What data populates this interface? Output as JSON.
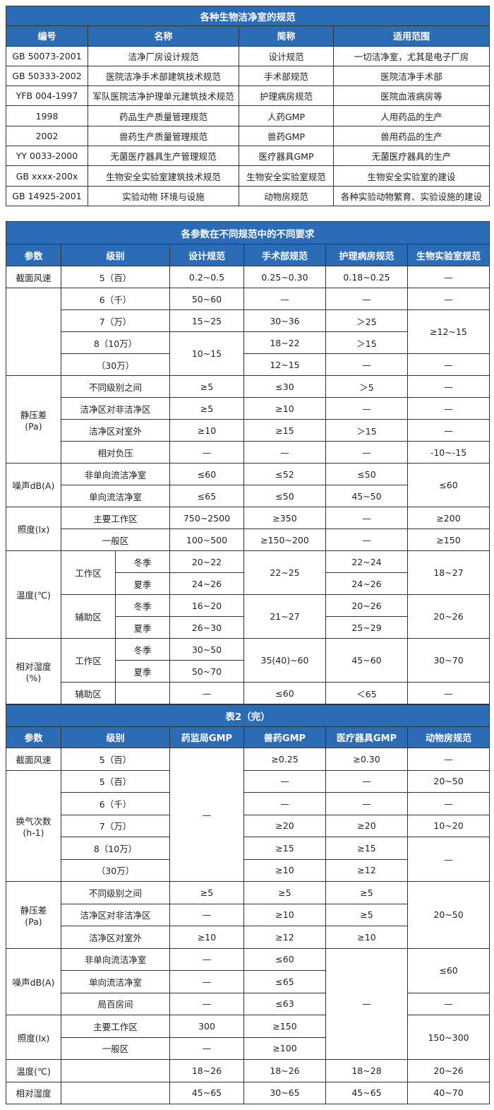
{
  "colors": {
    "header_bg": "#2c6bb5",
    "header_text": "#ffffff",
    "border": "#333333"
  },
  "tables": [
    {
      "title": "各种生物洁净室的规范",
      "headers": [
        {
          "t": "编号"
        },
        {
          "t": "名称"
        },
        {
          "t": "简称"
        },
        {
          "t": "适用范围"
        }
      ],
      "rows": [
        [
          {
            "t": "GB 50073-2001"
          },
          {
            "t": "洁净厂房设计规范"
          },
          {
            "t": "设计规范"
          },
          {
            "t": "一切洁净室，尤其是电子厂房"
          }
        ],
        [
          {
            "t": "GB 50333-2002"
          },
          {
            "t": "医院洁净手术部建筑技术规范"
          },
          {
            "t": "手术部规范"
          },
          {
            "t": "医院洁净手术部"
          }
        ],
        [
          {
            "t": "YFB 004-1997"
          },
          {
            "t": "军队医院洁净护理单元建筑技术规范"
          },
          {
            "t": "护理病房规范"
          },
          {
            "t": "医院血液病房等"
          }
        ],
        [
          {
            "t": "1998"
          },
          {
            "t": "药品生产质量管理规范"
          },
          {
            "t": "人药GMP"
          },
          {
            "t": "人用药品的生产"
          }
        ],
        [
          {
            "t": "2002"
          },
          {
            "t": "兽药生产质量管理规范"
          },
          {
            "t": "兽药GMP"
          },
          {
            "t": "兽用药品的生产"
          }
        ],
        [
          {
            "t": "YY 0033-2000"
          },
          {
            "t": "无菌医疗器具生产管理规范"
          },
          {
            "t": "医疗器具GMP"
          },
          {
            "t": "无菌医疗器具的生产"
          }
        ],
        [
          {
            "t": "GB xxxx-200x"
          },
          {
            "t": "生物安全实验室建筑技术规范"
          },
          {
            "t": "生物安全实验室规范"
          },
          {
            "t": "生物安全实验室的建设"
          }
        ],
        [
          {
            "t": "GB 14925-2001"
          },
          {
            "t": "实验动物 环境与设施"
          },
          {
            "t": "动物房规范"
          },
          {
            "t": "各种实验动物繁育、实验设施的建设"
          }
        ]
      ]
    },
    {
      "title": "各参数在不同规范中的不同要求",
      "headers": [
        {
          "t": "参数"
        },
        {
          "t": "级别",
          "cs": 2
        },
        {
          "t": "设计规范"
        },
        {
          "t": "手术部规范"
        },
        {
          "t": "护理病房规范"
        },
        {
          "t": "生物实验室规范"
        }
      ],
      "rows": [
        [
          {
            "t": "截面风速"
          },
          {
            "t": "5（百）",
            "cs": 2
          },
          {
            "t": "0.2~0.5"
          },
          {
            "t": "0.25~0.30"
          },
          {
            "t": "0.18~0.25"
          },
          {
            "t": "—"
          }
        ],
        [
          {
            "t": "",
            "rs": 4
          },
          {
            "t": "6（千）",
            "cs": 2
          },
          {
            "t": "50~60"
          },
          {
            "t": "—"
          },
          {
            "t": "—"
          },
          {
            "t": "—"
          }
        ],
        [
          {
            "t": "7（万）",
            "cs": 2
          },
          {
            "t": "15~25"
          },
          {
            "t": "30~36"
          },
          {
            "t": "＞25"
          },
          {
            "t": "≥12~15",
            "rs": 2
          }
        ],
        [
          {
            "t": "8（10万）",
            "cs": 2
          },
          {
            "t": "10~15",
            "rs": 2
          },
          {
            "t": "18~22"
          },
          {
            "t": "＞15"
          }
        ],
        [
          {
            "t": "（30万）",
            "cs": 2
          },
          {
            "t": "12~15"
          },
          {
            "t": "—"
          },
          {
            "t": "—"
          }
        ],
        [
          {
            "t": "静压差\n(Pa)",
            "rs": 4
          },
          {
            "t": "不同级别之间",
            "cs": 2
          },
          {
            "t": "≥5"
          },
          {
            "t": "≤30"
          },
          {
            "t": "＞5"
          },
          {
            "t": "—"
          }
        ],
        [
          {
            "t": "洁净区对非洁净区",
            "cs": 2
          },
          {
            "t": "≥5"
          },
          {
            "t": "≥10"
          },
          {
            "t": "—"
          },
          {
            "t": "—"
          }
        ],
        [
          {
            "t": "洁净区对室外",
            "cs": 2
          },
          {
            "t": "≥10"
          },
          {
            "t": "≥15"
          },
          {
            "t": "＞15"
          },
          {
            "t": "—"
          }
        ],
        [
          {
            "t": "相对负压",
            "cs": 2
          },
          {
            "t": "—"
          },
          {
            "t": "—"
          },
          {
            "t": "—"
          },
          {
            "t": "-10~-15"
          }
        ],
        [
          {
            "t": "噪声dB(A)",
            "rs": 2
          },
          {
            "t": "非单向流洁净室",
            "cs": 2
          },
          {
            "t": "≤60"
          },
          {
            "t": "≤52"
          },
          {
            "t": "≤50"
          },
          {
            "t": "≤60",
            "rs": 2
          }
        ],
        [
          {
            "t": "单向流洁净室",
            "cs": 2
          },
          {
            "t": "≤65"
          },
          {
            "t": "≤50"
          },
          {
            "t": "45~50"
          }
        ],
        [
          {
            "t": "照度(lx)",
            "rs": 2
          },
          {
            "t": "主要工作区",
            "cs": 2
          },
          {
            "t": "750~2500"
          },
          {
            "t": "≥350"
          },
          {
            "t": "—"
          },
          {
            "t": "≥200"
          }
        ],
        [
          {
            "t": "一般区",
            "cs": 2
          },
          {
            "t": "100~500"
          },
          {
            "t": "≥150~200"
          },
          {
            "t": "—"
          },
          {
            "t": "≥150"
          }
        ],
        [
          {
            "t": "温度(℃)",
            "rs": 4
          },
          {
            "t": "工作区",
            "rs": 2
          },
          {
            "t": "冬季"
          },
          {
            "t": "20~22"
          },
          {
            "t": "22~25",
            "rs": 2
          },
          {
            "t": "22~24"
          },
          {
            "t": "18~27",
            "rs": 2
          }
        ],
        [
          {
            "t": "夏季"
          },
          {
            "t": "24~26"
          },
          {
            "t": "24~26"
          }
        ],
        [
          {
            "t": "辅助区",
            "rs": 2
          },
          {
            "t": "冬季"
          },
          {
            "t": "16~20"
          },
          {
            "t": "21~27",
            "rs": 2
          },
          {
            "t": "20~26"
          },
          {
            "t": "20~26",
            "rs": 2
          }
        ],
        [
          {
            "t": "夏季"
          },
          {
            "t": "26~30"
          },
          {
            "t": "25~29"
          }
        ],
        [
          {
            "t": "相对湿度\n(%)",
            "rs": 3
          },
          {
            "t": "工作区",
            "rs": 2
          },
          {
            "t": "冬季"
          },
          {
            "t": "30~50"
          },
          {
            "t": "35(40)~60",
            "rs": 2
          },
          {
            "t": "45~60",
            "rs": 2
          },
          {
            "t": "30~70",
            "rs": 2
          }
        ],
        [
          {
            "t": "夏季"
          },
          {
            "t": "50~70"
          }
        ],
        [
          {
            "t": "辅助区"
          },
          {
            "t": ""
          },
          {
            "t": "—"
          },
          {
            "t": "≤60"
          },
          {
            "t": "＜65"
          },
          {
            "t": "—"
          }
        ]
      ]
    },
    {
      "title": "表2（完）",
      "headers": [
        {
          "t": "参数"
        },
        {
          "t": "级别",
          "cs": 2
        },
        {
          "t": "药监局GMP"
        },
        {
          "t": "兽药GMP"
        },
        {
          "t": "医疗器具GMP"
        },
        {
          "t": "动物房规范"
        }
      ],
      "rows": [
        [
          {
            "t": "截面风速"
          },
          {
            "t": "5（百）",
            "cs": 2
          },
          {
            "t": "—",
            "rs": 6
          },
          {
            "t": "≥0.25"
          },
          {
            "t": "≥0.30"
          },
          {
            "t": "—"
          }
        ],
        [
          {
            "t": "换气次数\n(h-1)",
            "rs": 5
          },
          {
            "t": "5（百）",
            "cs": 2
          },
          {
            "t": "—"
          },
          {
            "t": "—"
          },
          {
            "t": "20~50"
          }
        ],
        [
          {
            "t": "6（千）",
            "cs": 2
          },
          {
            "t": "—"
          },
          {
            "t": "—"
          },
          {
            "t": "—"
          }
        ],
        [
          {
            "t": "7（万）",
            "cs": 2
          },
          {
            "t": "≥20"
          },
          {
            "t": "≥20"
          },
          {
            "t": "10~20"
          }
        ],
        [
          {
            "t": "8（10万）",
            "cs": 2
          },
          {
            "t": "≥15"
          },
          {
            "t": "≥15"
          },
          {
            "t": "—",
            "rs": 2
          }
        ],
        [
          {
            "t": "（30万）",
            "cs": 2
          },
          {
            "t": "≥10"
          },
          {
            "t": "≥12"
          }
        ],
        [
          {
            "t": "静压差\n(Pa)",
            "rs": 3
          },
          {
            "t": "不同级别之间",
            "cs": 2
          },
          {
            "t": "≥5"
          },
          {
            "t": "≥5"
          },
          {
            "t": "≥5"
          },
          {
            "t": "20~50",
            "rs": 3
          }
        ],
        [
          {
            "t": "洁净区对非洁净区",
            "cs": 2
          },
          {
            "t": "—"
          },
          {
            "t": "≥10"
          },
          {
            "t": "≥5"
          }
        ],
        [
          {
            "t": "洁净区对室外",
            "cs": 2
          },
          {
            "t": "≥10"
          },
          {
            "t": "≥12"
          },
          {
            "t": "≥10"
          }
        ],
        [
          {
            "t": "噪声dB(A)",
            "rs": 3
          },
          {
            "t": "非单向流洁净室",
            "cs": 2
          },
          {
            "t": "—"
          },
          {
            "t": "≤60"
          },
          {
            "t": "—",
            "rs": 5
          },
          {
            "t": "≤60",
            "rs": 2
          }
        ],
        [
          {
            "t": "单向流洁净室",
            "cs": 2
          },
          {
            "t": "—"
          },
          {
            "t": "≤65"
          }
        ],
        [
          {
            "t": "局百房间",
            "cs": 2
          },
          {
            "t": "—"
          },
          {
            "t": "≤63"
          },
          {
            "t": "—"
          }
        ],
        [
          {
            "t": "照度(lx)",
            "rs": 2
          },
          {
            "t": "主要工作区",
            "cs": 2
          },
          {
            "t": "300"
          },
          {
            "t": "≥150"
          },
          {
            "t": "150~300",
            "rs": 2
          }
        ],
        [
          {
            "t": "一般区",
            "cs": 2
          },
          {
            "t": "—"
          },
          {
            "t": "≥100"
          }
        ],
        [
          {
            "t": "温度(℃)"
          },
          {
            "t": "",
            "cs": 2
          },
          {
            "t": "18~26"
          },
          {
            "t": "18~26"
          },
          {
            "t": "18~28"
          },
          {
            "t": "20~26"
          }
        ],
        [
          {
            "t": "相对湿度"
          },
          {
            "t": "",
            "cs": 2
          },
          {
            "t": "45~65"
          },
          {
            "t": "30~65"
          },
          {
            "t": "45~65"
          },
          {
            "t": "40~70"
          }
        ]
      ]
    }
  ]
}
